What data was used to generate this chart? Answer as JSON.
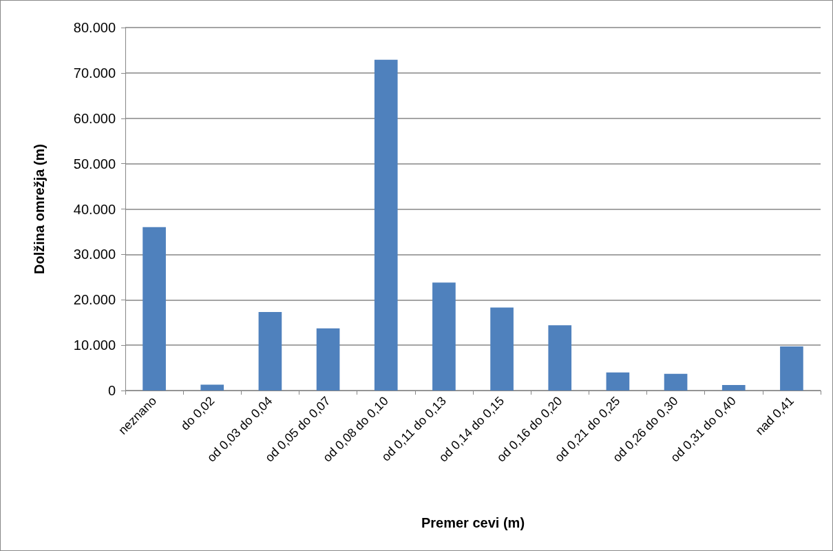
{
  "chart_data": {
    "type": "bar",
    "xlabel": "Premer cevi (m)",
    "ylabel": "Dolžina omrežja (m)",
    "categories": [
      "neznano",
      "do 0,02",
      "od 0,03 do 0,04",
      "od 0,05 do 0,07",
      "od 0,08 do 0,10",
      "od 0,11 do 0,13",
      "od 0,14 do 0,15",
      "od 0,16 do 0,20",
      "od 0,21 do 0,25",
      "od 0,26 do 0,30",
      "od 0,31 do 0,40",
      "nad 0,41"
    ],
    "values": [
      36000,
      1300,
      17300,
      13700,
      72900,
      23800,
      18300,
      14400,
      4000,
      3700,
      1200,
      9700
    ],
    "color": "#4f81bd",
    "ylim": [
      0,
      80000
    ],
    "yticks": [
      {
        "value": 0,
        "label": "0"
      },
      {
        "value": 10000,
        "label": "10.000"
      },
      {
        "value": 20000,
        "label": "20.000"
      },
      {
        "value": 30000,
        "label": "30.000"
      },
      {
        "value": 40000,
        "label": "40.000"
      },
      {
        "value": 50000,
        "label": "50.000"
      },
      {
        "value": 60000,
        "label": "60.000"
      },
      {
        "value": 70000,
        "label": "70.000"
      },
      {
        "value": 80000,
        "label": "80.000"
      }
    ],
    "grid": "y"
  }
}
